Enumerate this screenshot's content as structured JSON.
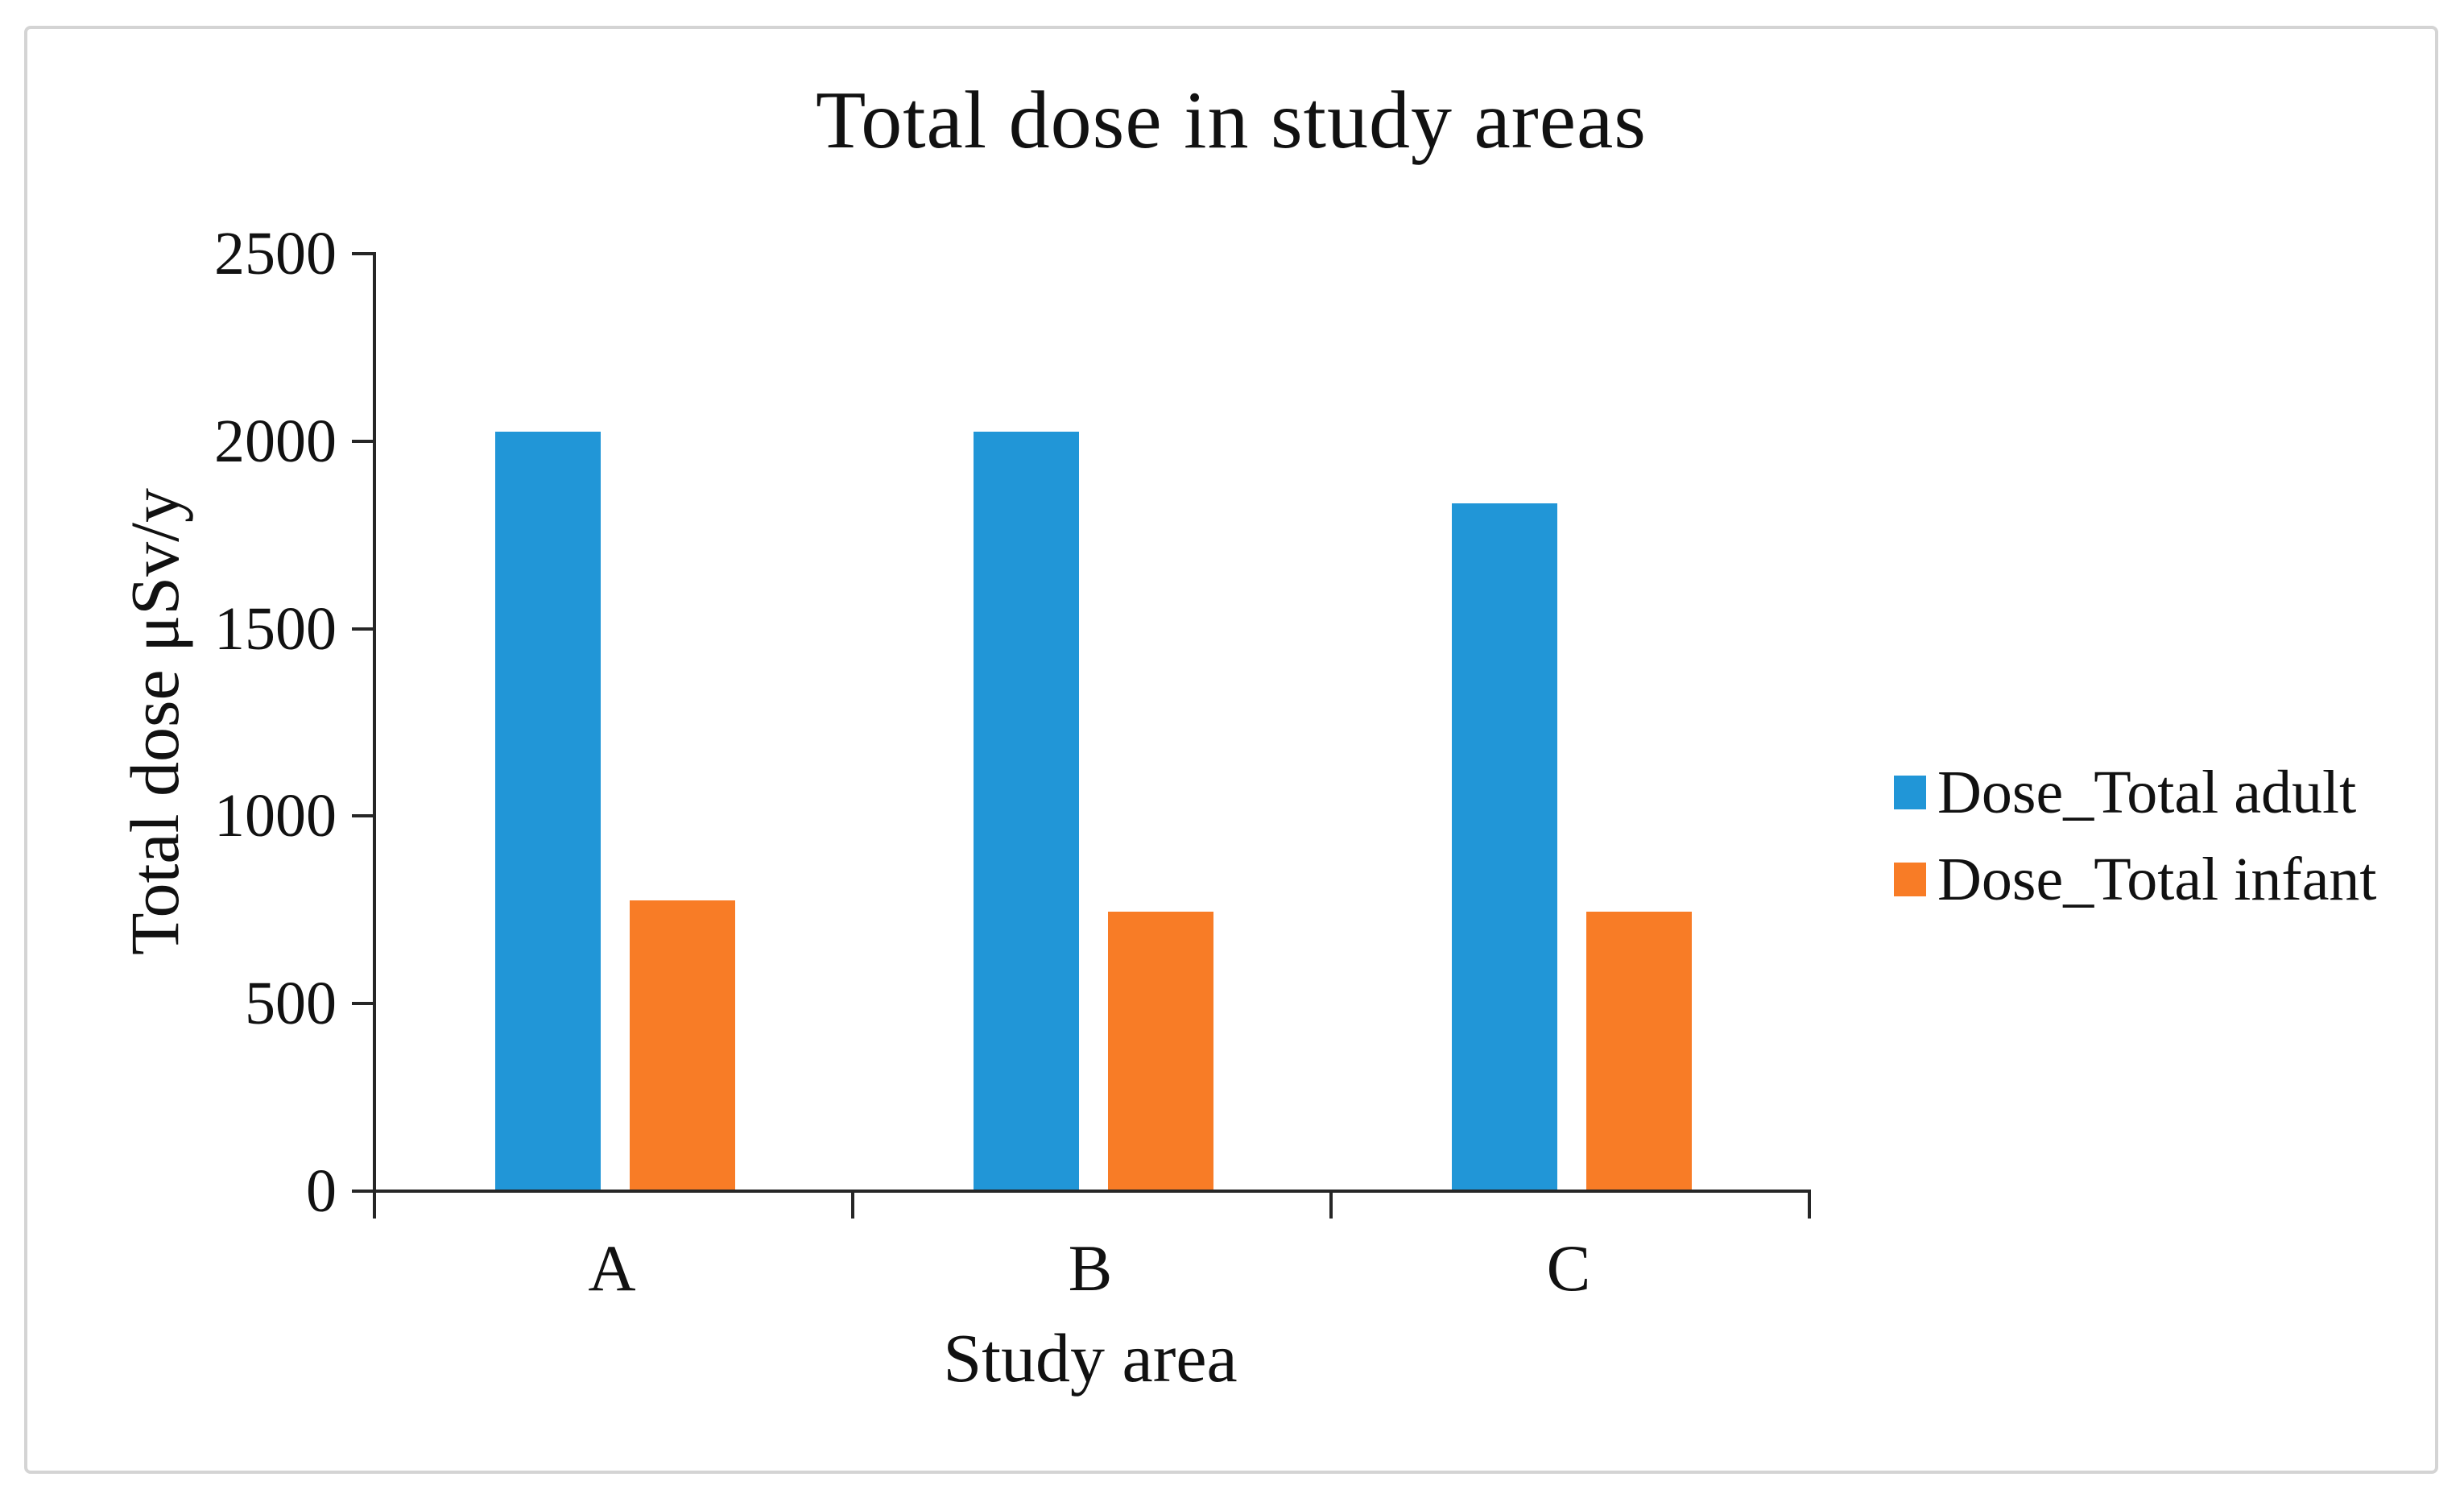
{
  "figure": {
    "border_color": "#d4d4d4",
    "background": "#ffffff"
  },
  "chart_data": {
    "type": "bar",
    "title": "Total dose in study areas",
    "xlabel": "Study area",
    "ylabel": "Total dose μSv/y",
    "categories": [
      "A",
      "B",
      "C"
    ],
    "series": [
      {
        "name": "Dose_Total adult",
        "color": "#2196D7",
        "values": [
          2020,
          2020,
          1830
        ]
      },
      {
        "name": "Dose_Total infant",
        "color": "#F87C26",
        "values": [
          770,
          740,
          740
        ]
      }
    ],
    "ylim": [
      0,
      2500
    ],
    "yticks": [
      0,
      500,
      1000,
      1500,
      2000,
      2500
    ],
    "grid": false,
    "legend_position": "right",
    "axis_color": "#262626"
  }
}
